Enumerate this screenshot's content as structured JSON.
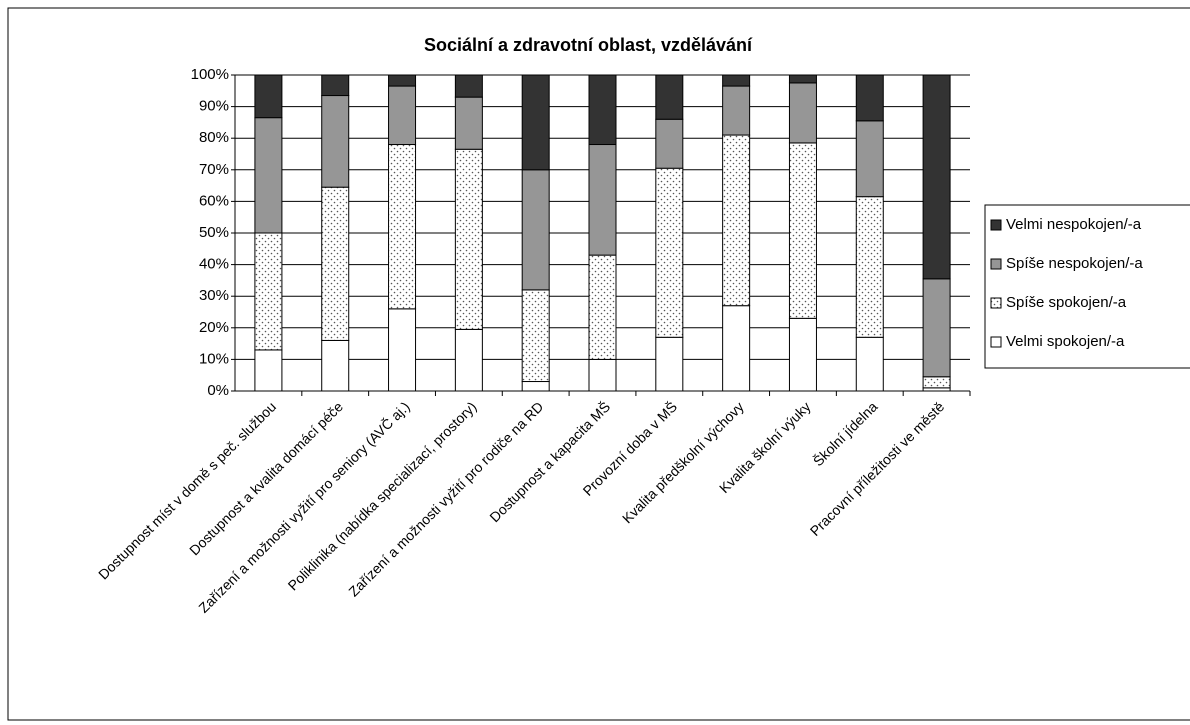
{
  "chart_data": {
    "type": "stacked_bar_percent",
    "title": "Sociální a zdravotní oblast, vzdělávání",
    "categories": [
      "Dostupnost míst v domě s peč. službou",
      "Dostupnost a kvalita domácí péče",
      "Zařízení a možnosti vyžití pro seniory (AVČ aj.)",
      "Poliklinika (nabídka specializací, prostory)",
      "Zařízení a možnosti vyžití pro rodiče na RD",
      "Dostupnost a kapacita MŠ",
      "Provozní doba v MŠ",
      "Kvalita předškolní výchovy",
      "Kvalita školní výuky",
      "Školní jídelna",
      "Pracovní příležitosti ve městě"
    ],
    "series": [
      {
        "name": "Velmi spokojen/-a",
        "color": "#ffffff",
        "values": [
          13,
          16,
          26,
          19.5,
          3,
          10,
          17,
          27,
          23,
          17,
          1
        ]
      },
      {
        "name": "Spíše spokojen/-a",
        "color": "#ffffff",
        "pattern": "dots",
        "values": [
          37,
          48.5,
          52,
          57,
          29,
          33,
          53.5,
          54,
          55.5,
          44.5,
          3.5
        ]
      },
      {
        "name": "Spíše nespokojen/-a",
        "color": "#969696",
        "values": [
          36.5,
          29,
          18.5,
          16.5,
          38,
          35,
          15.5,
          15.5,
          19,
          24,
          31
        ]
      },
      {
        "name": "Velmi nespokojen/-a",
        "color": "#333333",
        "values": [
          13.5,
          6.5,
          3.5,
          7,
          30,
          22,
          14,
          3.5,
          2.5,
          14.5,
          64.5
        ]
      }
    ],
    "ylim": [
      0,
      100
    ],
    "yticks": [
      {
        "value": 0,
        "label": "0%"
      },
      {
        "value": 10,
        "label": "10%"
      },
      {
        "value": 20,
        "label": "20%"
      },
      {
        "value": 30,
        "label": "30%"
      },
      {
        "value": 40,
        "label": "40%"
      },
      {
        "value": 50,
        "label": "50%"
      },
      {
        "value": 60,
        "label": "60%"
      },
      {
        "value": 70,
        "label": "70%"
      },
      {
        "value": 80,
        "label": "80%"
      },
      {
        "value": 90,
        "label": "90%"
      },
      {
        "value": 100,
        "label": "100%"
      }
    ],
    "grid": true,
    "legend": "right"
  }
}
